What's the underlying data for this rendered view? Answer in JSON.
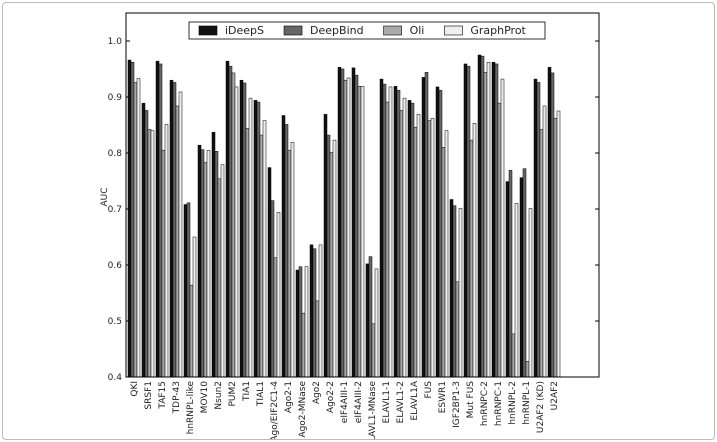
{
  "chart_data": {
    "type": "bar",
    "y_label": "AUC",
    "categories": [
      "QKI",
      "SRSF1",
      "TAF15",
      "TDP-43",
      "hnRNPL-like",
      "MOV10",
      "Nsun2",
      "PUM2",
      "TIA1",
      "TIAL1",
      "Ago/EIF2C1-4",
      "Ago2-1",
      "Ago2-MNase",
      "Ago2",
      "Ago2-2",
      "eIF4AIII-1",
      "eIF4AIII-2",
      "ELAVL1-MNase",
      "ELAVL1-1",
      "ELAVL1-2",
      "ELAVL1A",
      "FUS",
      "ESWR1",
      "IGF2BP1-3",
      "Mut FUS",
      "hnRNPC-2",
      "hnRNPC-1",
      "hnRNPL-2",
      "hnRNPL-1",
      "U2AF2 (KD)",
      "U2AF2"
    ],
    "series": [
      {
        "name": "iDeepS",
        "color": "#111111",
        "values": [
          0.966,
          0.889,
          0.964,
          0.93,
          0.708,
          0.814,
          0.837,
          0.964,
          0.93,
          0.894,
          0.774,
          0.867,
          0.591,
          0.636,
          0.869,
          0.953,
          0.952,
          0.602,
          0.932,
          0.919,
          0.894,
          0.935,
          0.918,
          0.717,
          0.959,
          0.975,
          0.962,
          0.749,
          0.756,
          0.932,
          0.953
        ]
      },
      {
        "name": "DeepBind",
        "color": "#666666",
        "values": [
          0.962,
          0.876,
          0.959,
          0.926,
          0.711,
          0.806,
          0.803,
          0.955,
          0.925,
          0.891,
          0.715,
          0.851,
          0.597,
          0.629,
          0.832,
          0.95,
          0.939,
          0.615,
          0.923,
          0.912,
          0.889,
          0.944,
          0.912,
          0.706,
          0.955,
          0.973,
          0.959,
          0.769,
          0.772,
          0.926,
          0.943
        ]
      },
      {
        "name": "Oli",
        "color": "#aaaaaa",
        "values": [
          0.926,
          0.842,
          0.805,
          0.884,
          0.564,
          0.783,
          0.754,
          0.943,
          0.844,
          0.832,
          0.613,
          0.805,
          0.514,
          0.536,
          0.801,
          0.93,
          0.919,
          0.495,
          0.891,
          0.876,
          0.846,
          0.858,
          0.81,
          0.57,
          0.823,
          0.944,
          0.889,
          0.477,
          0.428,
          0.842,
          0.862
        ]
      },
      {
        "name": "GraphProt",
        "color": "#eeeeee",
        "values": [
          0.933,
          0.84,
          0.851,
          0.909,
          0.65,
          0.805,
          0.779,
          0.918,
          0.898,
          0.858,
          0.694,
          0.819,
          0.597,
          0.636,
          0.823,
          0.934,
          0.919,
          0.593,
          0.918,
          0.898,
          0.869,
          0.862,
          0.84,
          0.701,
          0.853,
          0.962,
          0.932,
          0.71,
          0.701,
          0.884,
          0.875
        ]
      }
    ],
    "ylim": [
      0.4,
      1.05
    ],
    "yticks": [
      0.4,
      0.5,
      0.6,
      0.7,
      0.8,
      0.9,
      {
        "value": 1,
        "label": "1.0"
      }
    ],
    "legend": "top"
  }
}
